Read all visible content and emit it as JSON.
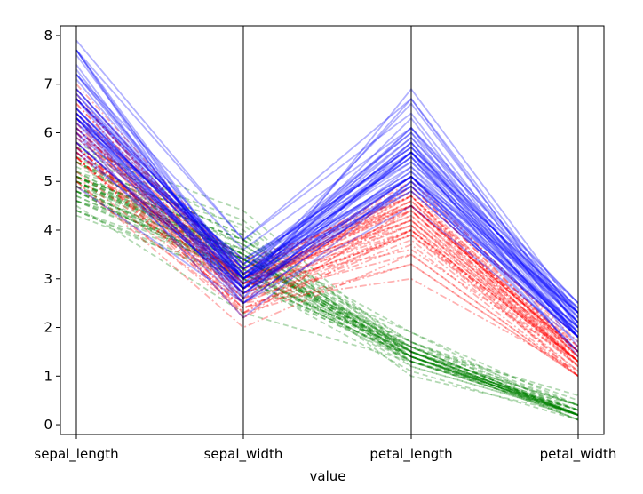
{
  "chart_data": {
    "type": "line",
    "subtype": "parallel-coordinates",
    "title": "",
    "xlabel": "value",
    "ylabel": "",
    "categories": [
      "sepal_length",
      "sepal_width",
      "petal_length",
      "petal_width"
    ],
    "ylim": [
      -0.2,
      8.2
    ],
    "yticks": [
      "0",
      "1",
      "2",
      "3",
      "4",
      "5",
      "6",
      "7",
      "8"
    ],
    "grid": false,
    "legend": "none",
    "line_alpha": 0.3,
    "series": [
      {
        "color": "#008000",
        "line_style": "dashed",
        "records": [
          [
            5.1,
            3.5,
            1.4,
            0.2
          ],
          [
            4.9,
            3.0,
            1.4,
            0.2
          ],
          [
            4.7,
            3.2,
            1.3,
            0.2
          ],
          [
            4.6,
            3.1,
            1.5,
            0.2
          ],
          [
            5.0,
            3.6,
            1.4,
            0.2
          ],
          [
            5.4,
            3.9,
            1.7,
            0.4
          ],
          [
            4.6,
            3.4,
            1.4,
            0.3
          ],
          [
            5.0,
            3.4,
            1.5,
            0.2
          ],
          [
            4.4,
            2.9,
            1.4,
            0.2
          ],
          [
            4.9,
            3.1,
            1.5,
            0.1
          ],
          [
            5.4,
            3.7,
            1.5,
            0.2
          ],
          [
            4.8,
            3.4,
            1.6,
            0.2
          ],
          [
            4.8,
            3.0,
            1.4,
            0.1
          ],
          [
            4.3,
            3.0,
            1.1,
            0.1
          ],
          [
            5.8,
            4.0,
            1.2,
            0.2
          ],
          [
            5.7,
            4.4,
            1.5,
            0.4
          ],
          [
            5.4,
            3.9,
            1.3,
            0.4
          ],
          [
            5.1,
            3.5,
            1.4,
            0.3
          ],
          [
            5.7,
            3.8,
            1.7,
            0.3
          ],
          [
            5.1,
            3.8,
            1.5,
            0.3
          ],
          [
            5.4,
            3.4,
            1.7,
            0.2
          ],
          [
            5.1,
            3.7,
            1.5,
            0.4
          ],
          [
            4.6,
            3.6,
            1.0,
            0.2
          ],
          [
            5.1,
            3.3,
            1.7,
            0.5
          ],
          [
            4.8,
            3.4,
            1.9,
            0.2
          ],
          [
            5.0,
            3.0,
            1.6,
            0.2
          ],
          [
            5.0,
            3.4,
            1.6,
            0.4
          ],
          [
            5.2,
            3.5,
            1.5,
            0.2
          ],
          [
            5.2,
            3.4,
            1.4,
            0.2
          ],
          [
            4.7,
            3.2,
            1.6,
            0.2
          ],
          [
            4.8,
            3.1,
            1.6,
            0.2
          ],
          [
            5.4,
            3.4,
            1.5,
            0.4
          ],
          [
            5.2,
            4.1,
            1.5,
            0.1
          ],
          [
            5.5,
            4.2,
            1.4,
            0.2
          ],
          [
            4.9,
            3.1,
            1.5,
            0.2
          ],
          [
            5.0,
            3.2,
            1.2,
            0.2
          ],
          [
            5.5,
            3.5,
            1.3,
            0.2
          ],
          [
            4.9,
            3.6,
            1.4,
            0.1
          ],
          [
            4.4,
            3.0,
            1.3,
            0.2
          ],
          [
            5.1,
            3.4,
            1.5,
            0.2
          ],
          [
            5.0,
            3.5,
            1.3,
            0.3
          ],
          [
            4.5,
            2.3,
            1.3,
            0.3
          ],
          [
            4.4,
            3.2,
            1.3,
            0.2
          ],
          [
            5.0,
            3.5,
            1.6,
            0.6
          ],
          [
            5.1,
            3.8,
            1.9,
            0.4
          ],
          [
            4.8,
            3.0,
            1.4,
            0.3
          ],
          [
            5.1,
            3.8,
            1.6,
            0.2
          ],
          [
            4.6,
            3.2,
            1.4,
            0.2
          ],
          [
            5.3,
            3.7,
            1.5,
            0.2
          ],
          [
            5.0,
            3.3,
            1.4,
            0.2
          ]
        ]
      },
      {
        "color": "#ff0000",
        "line_style": "dashdot",
        "records": [
          [
            7.0,
            3.2,
            4.7,
            1.4
          ],
          [
            6.4,
            3.2,
            4.5,
            1.5
          ],
          [
            6.9,
            3.1,
            4.9,
            1.5
          ],
          [
            5.5,
            2.3,
            4.0,
            1.3
          ],
          [
            6.5,
            2.8,
            4.6,
            1.5
          ],
          [
            5.7,
            2.8,
            4.5,
            1.3
          ],
          [
            6.3,
            3.3,
            4.7,
            1.6
          ],
          [
            4.9,
            2.4,
            3.3,
            1.0
          ],
          [
            6.6,
            2.9,
            4.6,
            1.3
          ],
          [
            5.2,
            2.7,
            3.9,
            1.4
          ],
          [
            5.0,
            2.0,
            3.5,
            1.0
          ],
          [
            5.9,
            3.0,
            4.2,
            1.5
          ],
          [
            6.0,
            2.2,
            4.0,
            1.0
          ],
          [
            6.1,
            2.9,
            4.7,
            1.4
          ],
          [
            5.6,
            2.9,
            3.6,
            1.3
          ],
          [
            6.7,
            3.1,
            4.4,
            1.4
          ],
          [
            5.6,
            3.0,
            4.5,
            1.5
          ],
          [
            5.8,
            2.7,
            4.1,
            1.0
          ],
          [
            6.2,
            2.2,
            4.5,
            1.5
          ],
          [
            5.6,
            2.5,
            3.9,
            1.1
          ],
          [
            5.9,
            3.2,
            4.8,
            1.8
          ],
          [
            6.1,
            2.8,
            4.0,
            1.3
          ],
          [
            6.3,
            2.5,
            4.9,
            1.5
          ],
          [
            6.1,
            2.8,
            4.7,
            1.2
          ],
          [
            6.4,
            2.9,
            4.3,
            1.3
          ],
          [
            6.6,
            3.0,
            4.4,
            1.4
          ],
          [
            6.8,
            2.8,
            4.8,
            1.4
          ],
          [
            6.7,
            3.0,
            5.0,
            1.7
          ],
          [
            6.0,
            2.9,
            4.5,
            1.5
          ],
          [
            5.7,
            2.6,
            3.5,
            1.0
          ],
          [
            5.5,
            2.4,
            3.8,
            1.1
          ],
          [
            5.5,
            2.4,
            3.7,
            1.0
          ],
          [
            5.8,
            2.7,
            3.9,
            1.2
          ],
          [
            6.0,
            2.7,
            5.1,
            1.6
          ],
          [
            5.4,
            3.0,
            4.5,
            1.5
          ],
          [
            6.0,
            3.4,
            4.5,
            1.6
          ],
          [
            6.7,
            3.1,
            4.7,
            1.5
          ],
          [
            6.3,
            2.3,
            4.4,
            1.3
          ],
          [
            5.6,
            3.0,
            4.1,
            1.3
          ],
          [
            5.5,
            2.5,
            4.0,
            1.3
          ],
          [
            5.5,
            2.6,
            4.4,
            1.2
          ],
          [
            6.1,
            3.0,
            4.6,
            1.4
          ],
          [
            5.8,
            2.6,
            4.0,
            1.2
          ],
          [
            5.0,
            2.3,
            3.3,
            1.0
          ],
          [
            5.6,
            2.7,
            4.2,
            1.3
          ],
          [
            5.7,
            3.0,
            4.2,
            1.2
          ],
          [
            5.7,
            2.9,
            4.2,
            1.3
          ],
          [
            6.2,
            2.9,
            4.3,
            1.3
          ],
          [
            5.1,
            2.5,
            3.0,
            1.1
          ],
          [
            5.7,
            2.8,
            4.1,
            1.3
          ]
        ]
      },
      {
        "color": "#0000ff",
        "line_style": "solid",
        "records": [
          [
            6.3,
            3.3,
            6.0,
            2.5
          ],
          [
            5.8,
            2.7,
            5.1,
            1.9
          ],
          [
            7.1,
            3.0,
            5.9,
            2.1
          ],
          [
            6.3,
            2.9,
            5.6,
            1.8
          ],
          [
            6.5,
            3.0,
            5.8,
            2.2
          ],
          [
            7.6,
            3.0,
            6.6,
            2.1
          ],
          [
            4.9,
            2.5,
            4.5,
            1.7
          ],
          [
            7.3,
            2.9,
            6.3,
            1.8
          ],
          [
            6.7,
            2.5,
            5.8,
            1.8
          ],
          [
            7.2,
            3.6,
            6.1,
            2.5
          ],
          [
            6.5,
            3.2,
            5.1,
            2.0
          ],
          [
            6.4,
            2.7,
            5.3,
            1.9
          ],
          [
            6.8,
            3.0,
            5.5,
            2.1
          ],
          [
            5.7,
            2.5,
            5.0,
            2.0
          ],
          [
            5.8,
            2.8,
            5.1,
            2.4
          ],
          [
            6.4,
            3.2,
            5.3,
            2.3
          ],
          [
            6.5,
            3.0,
            5.5,
            1.8
          ],
          [
            7.7,
            3.8,
            6.7,
            2.2
          ],
          [
            7.7,
            2.6,
            6.9,
            2.3
          ],
          [
            6.0,
            2.2,
            5.0,
            1.5
          ],
          [
            6.9,
            3.2,
            5.7,
            2.3
          ],
          [
            5.6,
            2.8,
            4.9,
            2.0
          ],
          [
            7.7,
            2.8,
            6.7,
            2.0
          ],
          [
            6.3,
            2.7,
            4.9,
            1.8
          ],
          [
            6.7,
            3.3,
            5.7,
            2.1
          ],
          [
            7.2,
            3.2,
            6.0,
            1.8
          ],
          [
            6.2,
            2.8,
            4.8,
            1.8
          ],
          [
            6.1,
            3.0,
            4.9,
            1.8
          ],
          [
            6.4,
            2.8,
            5.6,
            2.1
          ],
          [
            7.2,
            3.0,
            5.8,
            1.6
          ],
          [
            7.4,
            2.8,
            6.1,
            1.9
          ],
          [
            7.9,
            3.8,
            6.4,
            2.0
          ],
          [
            6.4,
            2.8,
            5.6,
            2.2
          ],
          [
            6.3,
            2.8,
            5.1,
            1.5
          ],
          [
            6.1,
            2.6,
            5.6,
            1.4
          ],
          [
            7.7,
            3.0,
            6.1,
            2.3
          ],
          [
            6.3,
            3.4,
            5.6,
            2.4
          ],
          [
            6.4,
            3.1,
            5.5,
            1.8
          ],
          [
            6.0,
            3.0,
            4.8,
            1.8
          ],
          [
            6.9,
            3.1,
            5.4,
            2.1
          ],
          [
            6.7,
            3.1,
            5.6,
            2.4
          ],
          [
            6.9,
            3.1,
            5.1,
            2.3
          ],
          [
            5.8,
            2.7,
            5.1,
            1.9
          ],
          [
            6.8,
            3.2,
            5.9,
            2.3
          ],
          [
            6.7,
            3.3,
            5.7,
            2.5
          ],
          [
            6.7,
            3.0,
            5.2,
            2.3
          ],
          [
            6.3,
            2.5,
            5.0,
            1.9
          ],
          [
            6.5,
            3.0,
            5.2,
            2.0
          ],
          [
            6.2,
            3.4,
            5.4,
            2.3
          ],
          [
            5.9,
            3.0,
            5.1,
            1.8
          ]
        ]
      }
    ]
  }
}
